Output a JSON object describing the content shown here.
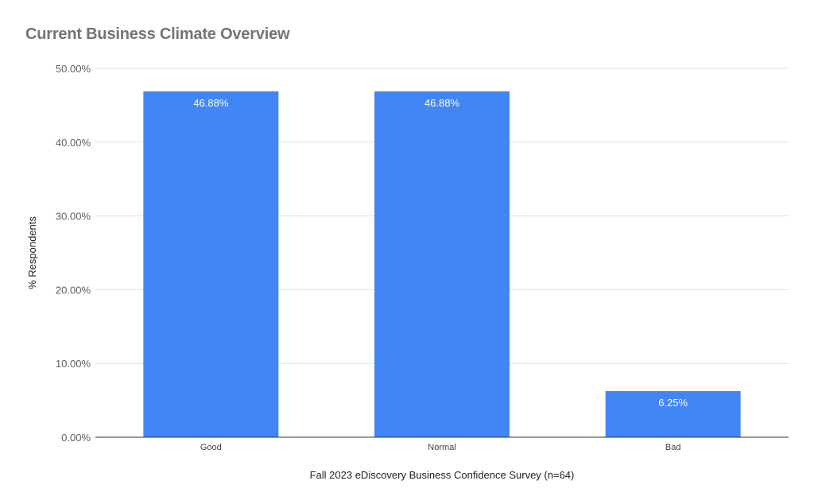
{
  "chart_data": {
    "type": "bar",
    "title": "Current Business Climate Overview",
    "xlabel": "Fall 2023 eDiscovery Business Confidence Survey (n=64)",
    "ylabel": "% Respondents",
    "categories": [
      "Good",
      "Normal",
      "Bad"
    ],
    "values": [
      46.88,
      46.88,
      6.25
    ],
    "data_labels": [
      "46.88%",
      "46.88%",
      "6.25%"
    ],
    "ylim": [
      0,
      50
    ],
    "yticks": [
      0,
      10,
      20,
      30,
      40,
      50
    ],
    "ytick_labels": [
      "0.00%",
      "10.00%",
      "20.00%",
      "30.00%",
      "40.00%",
      "50.00%"
    ],
    "grid": true,
    "legend": "none",
    "bar_color": "#4285f4"
  }
}
